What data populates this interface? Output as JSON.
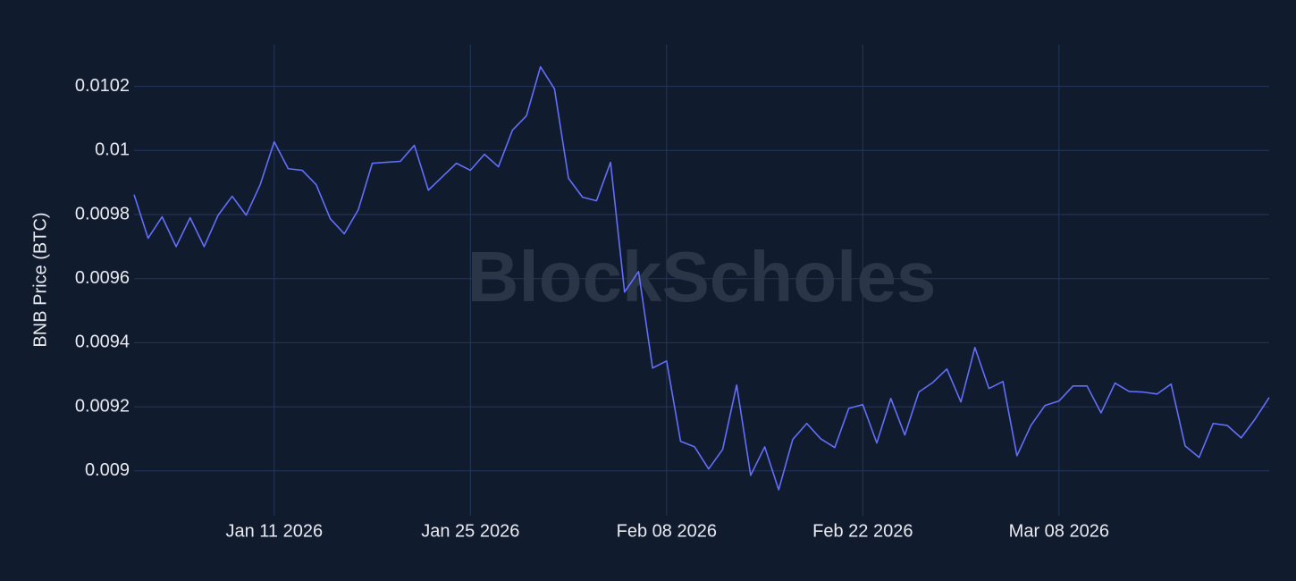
{
  "chart_data": {
    "type": "line",
    "y_label": "BNB Price (BTC)",
    "watermark": "BlockScholes",
    "x": [
      "2026-01-01",
      "2026-01-02",
      "2026-01-03",
      "2026-01-04",
      "2026-01-05",
      "2026-01-06",
      "2026-01-07",
      "2026-01-08",
      "2026-01-09",
      "2026-01-10",
      "2026-01-11",
      "2026-01-12",
      "2026-01-13",
      "2026-01-14",
      "2026-01-15",
      "2026-01-16",
      "2026-01-17",
      "2026-01-18",
      "2026-01-19",
      "2026-01-20",
      "2026-01-21",
      "2026-01-22",
      "2026-01-23",
      "2026-01-24",
      "2026-01-25",
      "2026-01-26",
      "2026-01-27",
      "2026-01-28",
      "2026-01-29",
      "2026-01-30",
      "2026-01-31",
      "2026-02-01",
      "2026-02-02",
      "2026-02-03",
      "2026-02-04",
      "2026-02-05",
      "2026-02-06",
      "2026-02-07",
      "2026-02-08",
      "2026-02-09",
      "2026-02-10",
      "2026-02-11",
      "2026-02-12",
      "2026-02-13",
      "2026-02-14",
      "2026-02-15",
      "2026-02-16",
      "2026-02-17",
      "2026-02-18",
      "2026-02-19",
      "2026-02-20",
      "2026-02-21",
      "2026-02-22",
      "2026-02-23",
      "2026-02-24",
      "2026-02-25",
      "2026-02-26",
      "2026-02-27",
      "2026-02-28",
      "2026-03-01",
      "2026-03-02",
      "2026-03-03",
      "2026-03-04",
      "2026-03-05",
      "2026-03-06",
      "2026-03-07",
      "2026-03-08",
      "2026-03-09",
      "2026-03-10",
      "2026-03-11",
      "2026-03-12",
      "2026-03-13",
      "2026-03-14",
      "2026-03-15",
      "2026-03-16",
      "2026-03-17",
      "2026-03-18",
      "2026-03-19",
      "2026-03-20",
      "2026-03-21",
      "2026-03-22",
      "2026-03-23"
    ],
    "series": [
      {
        "color": "#636efa",
        "values": [
          0.009862,
          0.009726,
          0.009793,
          0.0097,
          0.00979,
          0.0097,
          0.009798,
          0.009857,
          0.009798,
          0.009893,
          0.010027,
          0.009943,
          0.009938,
          0.009893,
          0.009787,
          0.00974,
          0.009815,
          0.00996,
          0.009963,
          0.009966,
          0.010016,
          0.009876,
          0.009918,
          0.00996,
          0.009938,
          0.009988,
          0.009949,
          0.010063,
          0.010108,
          0.010261,
          0.010192,
          0.009913,
          0.009854,
          0.009843,
          0.009963,
          0.009558,
          0.009622,
          0.009321,
          0.009343,
          0.009092,
          0.009075,
          0.009006,
          0.009067,
          0.009268,
          0.008986,
          0.009075,
          0.008941,
          0.009098,
          0.009148,
          0.0091,
          0.009073,
          0.009195,
          0.009207,
          0.009087,
          0.009226,
          0.009112,
          0.009246,
          0.009276,
          0.009318,
          0.009215,
          0.009385,
          0.009257,
          0.009279,
          0.009047,
          0.009142,
          0.009204,
          0.009218,
          0.009265,
          0.009265,
          0.009181,
          0.009274,
          0.009248,
          0.009246,
          0.00924,
          0.009271,
          0.009078,
          0.009042,
          0.009148,
          0.009142,
          0.009103,
          0.009162,
          0.009229
        ]
      }
    ],
    "xlim": [
      "2026-01-01",
      "2026-03-23"
    ],
    "xticks": [
      {
        "value": "2026-01-11",
        "label": "Jan 11 2026"
      },
      {
        "value": "2026-01-25",
        "label": "Jan 25 2026"
      },
      {
        "value": "2026-02-08",
        "label": "Feb 08 2026"
      },
      {
        "value": "2026-02-22",
        "label": "Feb 22 2026"
      },
      {
        "value": "2026-03-08",
        "label": "Mar 08 2026"
      }
    ],
    "ylim": [
      0.00886,
      0.01033
    ],
    "yticks": [
      0.009,
      0.0092,
      0.0094,
      0.0096,
      0.0098,
      0.01,
      0.0102
    ],
    "grid": true
  }
}
